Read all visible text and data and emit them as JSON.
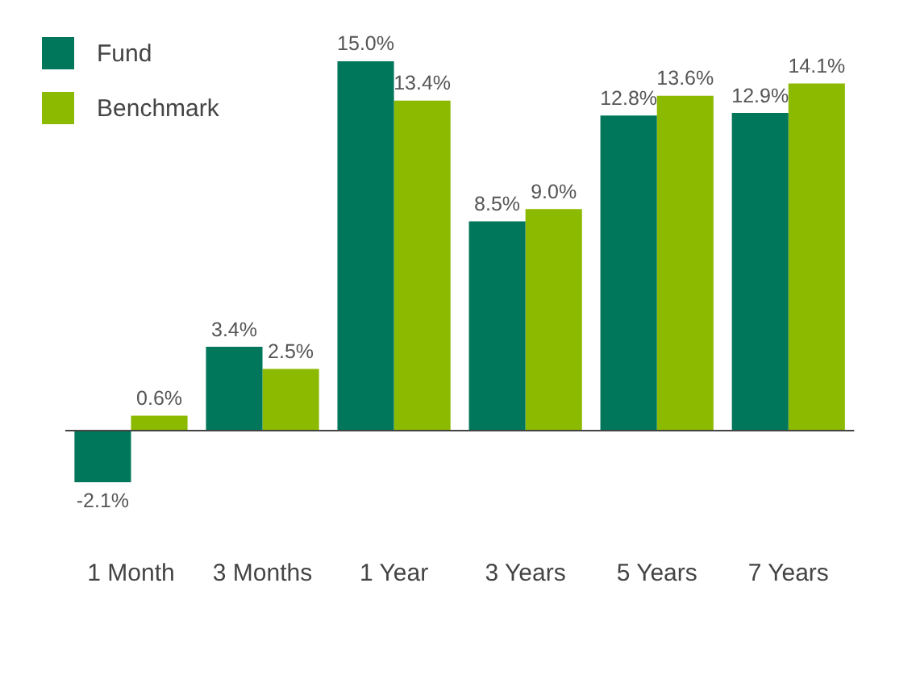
{
  "chart_data": {
    "type": "bar",
    "categories": [
      "1 Month",
      "3 Months",
      "1 Year",
      "3 Years",
      "5 Years",
      "7 Years"
    ],
    "series": [
      {
        "name": "Fund",
        "color": "#00775a",
        "values": [
          -2.1,
          3.4,
          15.0,
          8.5,
          12.8,
          12.9
        ],
        "value_labels": [
          "-2.1%",
          "3.4%",
          "15.0%",
          "8.5%",
          "12.8%",
          "12.9%"
        ]
      },
      {
        "name": "Benchmark",
        "color": "#8cba00",
        "values": [
          0.6,
          2.5,
          13.4,
          9.0,
          13.6,
          14.1
        ],
        "value_labels": [
          "0.6%",
          "2.5%",
          "13.4%",
          "9.0%",
          "13.6%",
          "14.1%"
        ]
      }
    ],
    "legend": "top left",
    "grid": false
  }
}
